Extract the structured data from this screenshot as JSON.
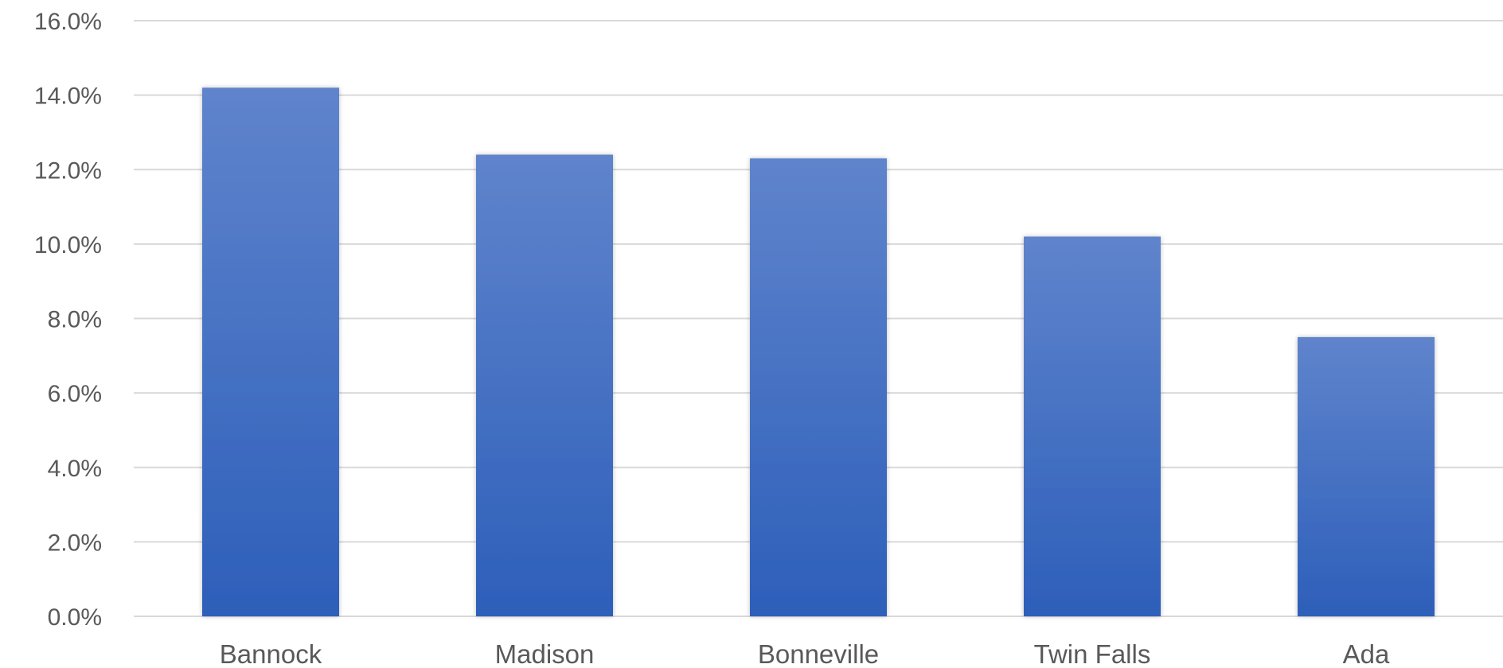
{
  "chart_data": {
    "type": "bar",
    "categories": [
      "Bannock",
      "Madison",
      "Bonneville",
      "Twin Falls",
      "Ada"
    ],
    "values": [
      14.2,
      12.4,
      12.3,
      10.2,
      7.5
    ],
    "value_format": "percent_one_decimal",
    "ylim": [
      0,
      16
    ],
    "y_ticks": [
      "0.0%",
      "2.0%",
      "4.0%",
      "6.0%",
      "8.0%",
      "10.0%",
      "12.0%",
      "14.0%",
      "16.0%"
    ],
    "title": "",
    "xlabel": "",
    "ylabel": "",
    "grid": true,
    "legend": "none",
    "colors": {
      "bar_top": "#5f84cc",
      "bar_bottom": "#2d5fba",
      "grid": "#d9d9d9",
      "text": "#595959"
    }
  }
}
